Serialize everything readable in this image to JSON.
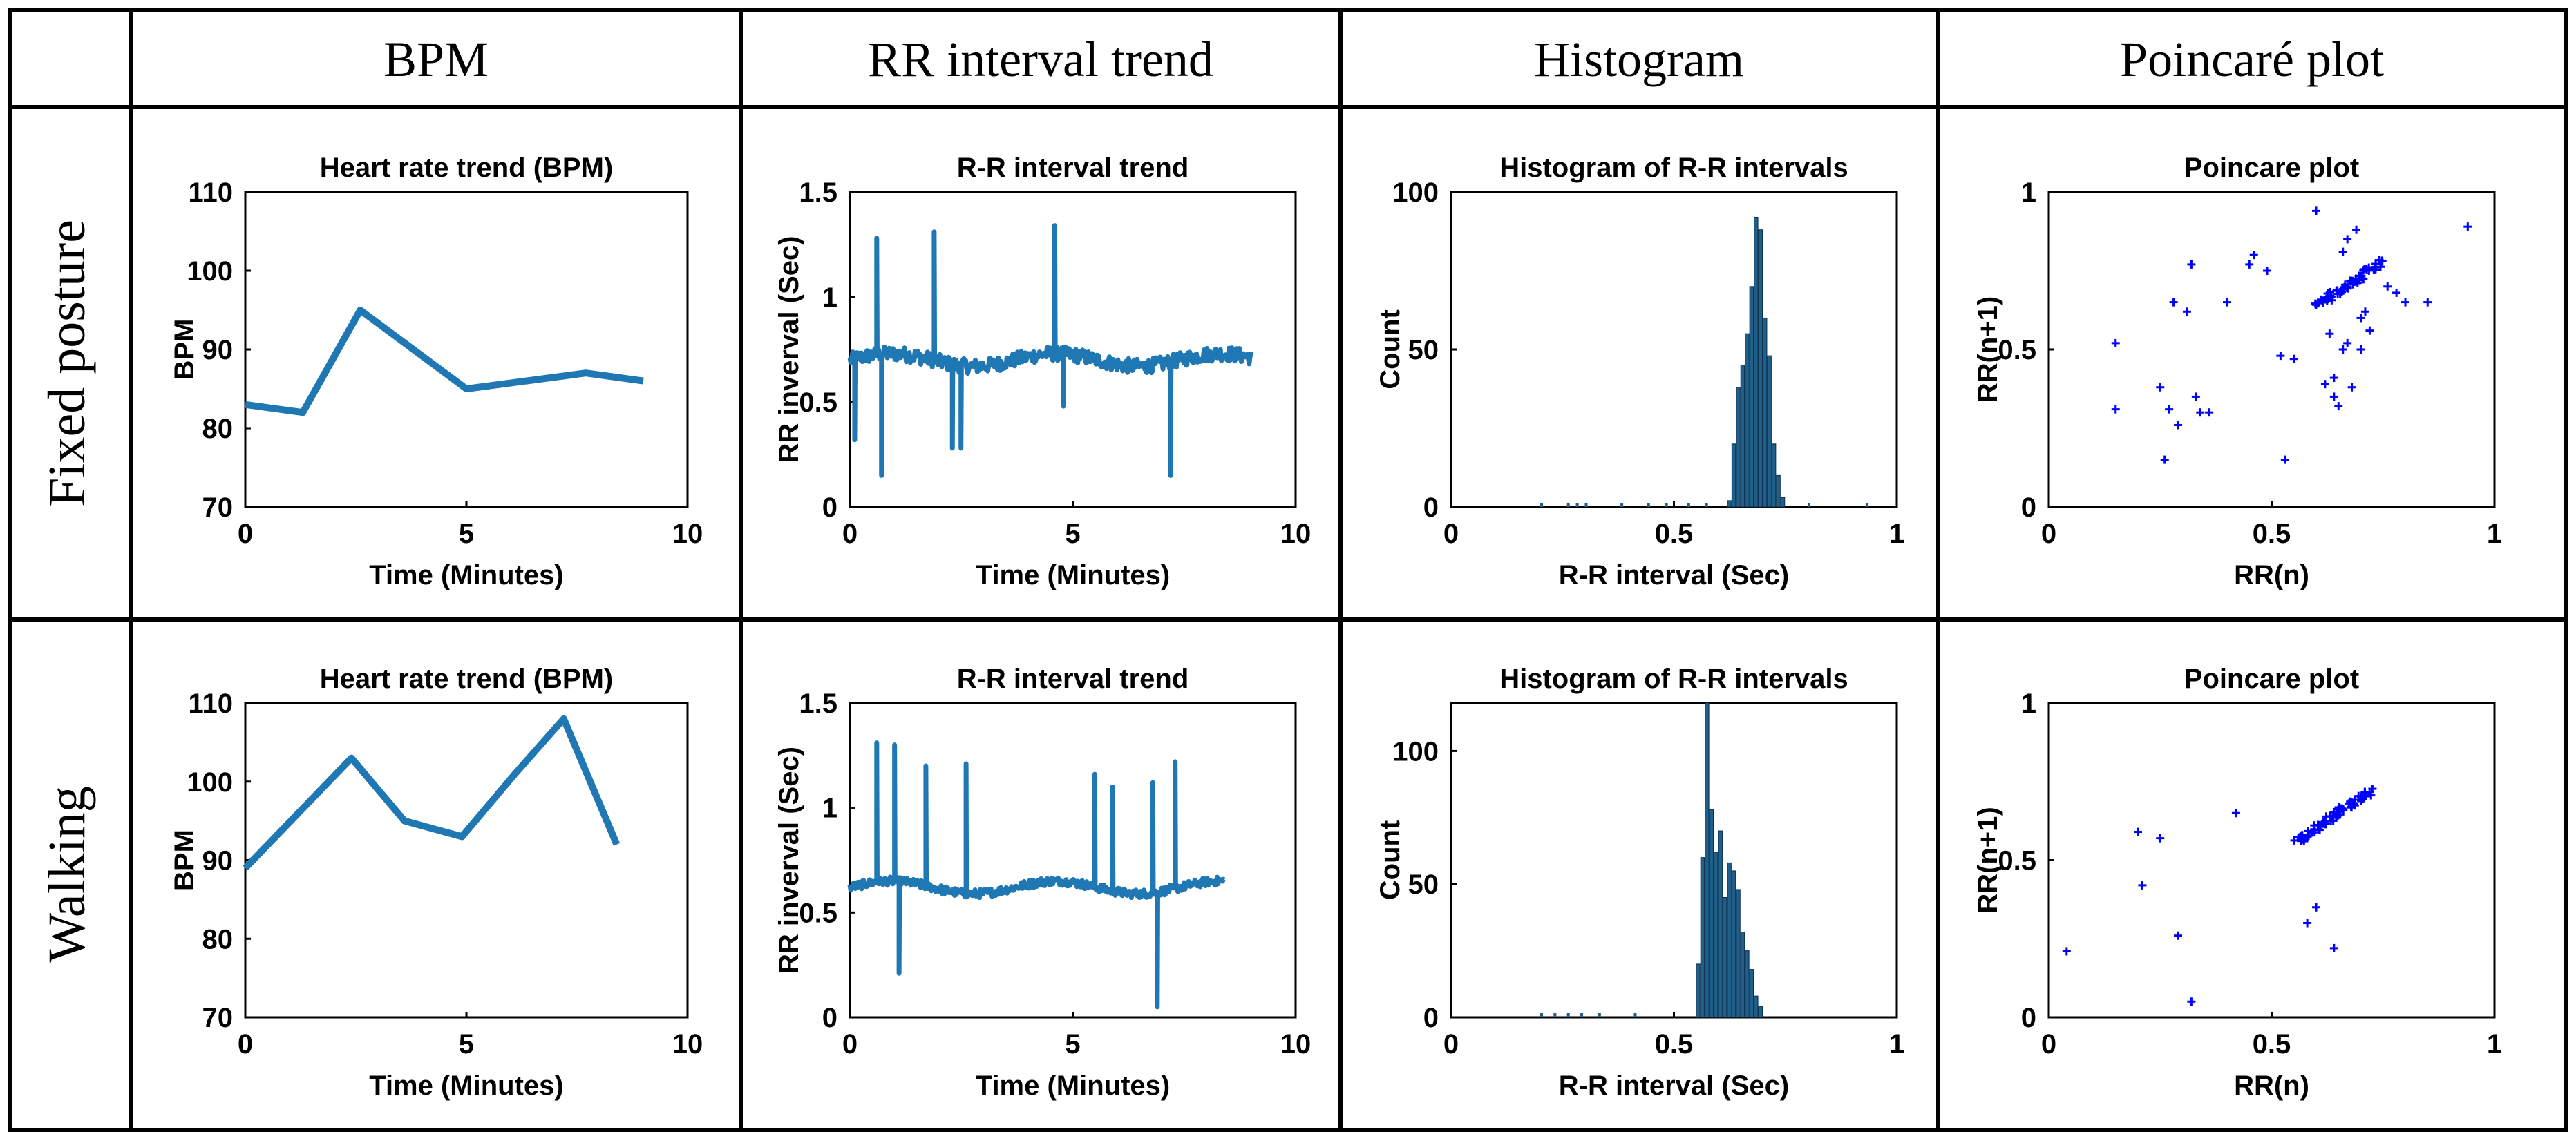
{
  "table": {
    "column_headers": [
      "BPM",
      "RR interval trend",
      "Histogram",
      "Poincaré plot"
    ],
    "row_headers": [
      "Fixed posture",
      "Walking"
    ]
  },
  "colors": {
    "line": "#1f77b4",
    "bar": "#1f5f8a",
    "marker": "#0000ff",
    "border": "#000000"
  },
  "chart_data": [
    {
      "id": "fixed-bpm",
      "type": "line",
      "title": "Heart rate trend (BPM)",
      "xlabel": "Time (Minutes)",
      "ylabel": "BPM",
      "xlim": [
        0,
        10
      ],
      "ylim": [
        70,
        110
      ],
      "xticks": [
        0,
        5,
        10
      ],
      "yticks": [
        70,
        80,
        90,
        100,
        110
      ],
      "x": [
        0,
        1.3,
        2.6,
        5.0,
        7.7,
        9.0
      ],
      "y": [
        83,
        82,
        95,
        85,
        87,
        86
      ]
    },
    {
      "id": "fixed-rr",
      "type": "line",
      "title": "R-R interval trend",
      "xlabel": "Time (Minutes)",
      "ylabel": "RR inverval (Sec)",
      "xlim": [
        0,
        10
      ],
      "ylim": [
        0,
        1.5
      ],
      "xticks": [
        0,
        5,
        10
      ],
      "yticks": [
        0,
        0.5,
        1,
        1.5
      ],
      "xmax": 9.0,
      "baseline": 0.7,
      "noise": 0.035,
      "spikes": [
        {
          "x": 0.1,
          "y": 0.32
        },
        {
          "x": 0.6,
          "y": 1.28
        },
        {
          "x": 0.7,
          "y": 0.15
        },
        {
          "x": 1.9,
          "y": 1.31
        },
        {
          "x": 2.3,
          "y": 0.28
        },
        {
          "x": 2.5,
          "y": 0.28
        },
        {
          "x": 4.6,
          "y": 1.34
        },
        {
          "x": 4.8,
          "y": 0.48
        },
        {
          "x": 7.2,
          "y": 0.15
        }
      ]
    },
    {
      "id": "fixed-hist",
      "type": "bar",
      "title": "Histogram of R-R intervals",
      "xlabel": "R-R interval (Sec)",
      "ylabel": "Count",
      "xlim": [
        0,
        1
      ],
      "ylim": [
        0,
        100
      ],
      "xticks": [
        0,
        0.5,
        1
      ],
      "yticks": [
        0,
        50,
        100
      ],
      "bin_start": 0.62,
      "bin_width": 0.01,
      "counts": [
        2,
        20,
        38,
        45,
        55,
        70,
        92,
        88,
        60,
        48,
        20,
        10,
        3
      ],
      "scatter_bins": [
        0.2,
        0.26,
        0.28,
        0.3,
        0.38,
        0.44,
        0.48,
        0.53,
        0.57,
        0.8,
        0.93
      ]
    },
    {
      "id": "fixed-poincare",
      "type": "scatter",
      "title": "Poincare plot",
      "xlabel": "RR(n)",
      "ylabel": "RR(n+1)",
      "xlim": [
        0,
        1
      ],
      "ylim": [
        0,
        1
      ],
      "xticks": [
        0,
        0.5,
        1
      ],
      "yticks": [
        0,
        0.5,
        1
      ],
      "cluster": {
        "x_from": 0.6,
        "x_to": 0.75,
        "y_from": 0.64,
        "y_to": 0.78,
        "count": 60
      },
      "points": [
        [
          0.15,
          0.52
        ],
        [
          0.15,
          0.31
        ],
        [
          0.25,
          0.38
        ],
        [
          0.26,
          0.15
        ],
        [
          0.27,
          0.31
        ],
        [
          0.28,
          0.65
        ],
        [
          0.29,
          0.26
        ],
        [
          0.31,
          0.62
        ],
        [
          0.32,
          0.77
        ],
        [
          0.33,
          0.35
        ],
        [
          0.34,
          0.3
        ],
        [
          0.36,
          0.3
        ],
        [
          0.4,
          0.65
        ],
        [
          0.45,
          0.77
        ],
        [
          0.46,
          0.8
        ],
        [
          0.49,
          0.75
        ],
        [
          0.52,
          0.48
        ],
        [
          0.53,
          0.15
        ],
        [
          0.55,
          0.47
        ],
        [
          0.6,
          0.94
        ],
        [
          0.62,
          0.39
        ],
        [
          0.63,
          0.55
        ],
        [
          0.64,
          0.35
        ],
        [
          0.65,
          0.32
        ],
        [
          0.66,
          0.5
        ],
        [
          0.66,
          0.81
        ],
        [
          0.67,
          0.52
        ],
        [
          0.68,
          0.38
        ],
        [
          0.69,
          0.88
        ],
        [
          0.7,
          0.6
        ],
        [
          0.71,
          0.62
        ],
        [
          0.72,
          0.56
        ],
        [
          0.76,
          0.7
        ],
        [
          0.78,
          0.68
        ],
        [
          0.8,
          0.65
        ],
        [
          0.85,
          0.65
        ],
        [
          0.94,
          0.89
        ],
        [
          0.64,
          0.41
        ],
        [
          0.67,
          0.85
        ],
        [
          0.7,
          0.5
        ]
      ]
    },
    {
      "id": "walking-bpm",
      "type": "line",
      "title": "Heart rate trend (BPM)",
      "xlabel": "Time (Minutes)",
      "ylabel": "BPM",
      "xlim": [
        0,
        10
      ],
      "ylim": [
        70,
        110
      ],
      "xticks": [
        0,
        5,
        10
      ],
      "yticks": [
        70,
        80,
        90,
        100,
        110
      ],
      "x": [
        0,
        2.4,
        3.6,
        4.9,
        6.1,
        7.2,
        8.4
      ],
      "y": [
        89,
        103,
        95,
        93,
        101,
        108,
        92
      ]
    },
    {
      "id": "walking-rr",
      "type": "line",
      "title": "R-R interval trend",
      "xlabel": "Time (Minutes)",
      "ylabel": "RR inverval (Sec)",
      "xlim": [
        0,
        10
      ],
      "ylim": [
        0,
        1.5
      ],
      "xticks": [
        0,
        5,
        10
      ],
      "yticks": [
        0,
        0.5,
        1,
        1.5
      ],
      "xmax": 8.4,
      "baseline": 0.62,
      "noise": 0.02,
      "spikes": [
        {
          "x": 0.6,
          "y": 1.31
        },
        {
          "x": 1.0,
          "y": 1.3
        },
        {
          "x": 1.1,
          "y": 0.21
        },
        {
          "x": 1.7,
          "y": 1.2
        },
        {
          "x": 2.6,
          "y": 1.21
        },
        {
          "x": 5.5,
          "y": 1.16
        },
        {
          "x": 5.9,
          "y": 1.1
        },
        {
          "x": 6.8,
          "y": 1.12
        },
        {
          "x": 6.9,
          "y": 0.05
        },
        {
          "x": 7.3,
          "y": 1.22
        }
      ]
    },
    {
      "id": "walking-hist",
      "type": "bar",
      "title": "Histogram of R-R intervals",
      "xlabel": "R-R interval (Sec)",
      "ylabel": "Count",
      "xlim": [
        0,
        1
      ],
      "ylim": [
        0,
        118
      ],
      "xticks": [
        0,
        0.5,
        1
      ],
      "yticks": [
        0,
        50,
        100
      ],
      "bin_start": 0.55,
      "bin_width": 0.01,
      "counts": [
        20,
        60,
        118,
        78,
        62,
        70,
        45,
        58,
        55,
        48,
        32,
        25,
        18,
        8,
        4
      ],
      "scatter_bins": [
        0.2,
        0.23,
        0.26,
        0.29,
        0.33,
        0.41
      ]
    },
    {
      "id": "walking-poincare",
      "type": "scatter",
      "title": "Poincare plot",
      "xlabel": "RR(n)",
      "ylabel": "RR(n+1)",
      "xlim": [
        0,
        1
      ],
      "ylim": [
        0,
        1
      ],
      "xticks": [
        0,
        0.5,
        1
      ],
      "yticks": [
        0,
        0.5,
        1
      ],
      "cluster": {
        "x_from": 0.56,
        "x_to": 0.72,
        "y_from": 0.56,
        "y_to": 0.72,
        "count": 70
      },
      "points": [
        [
          0.04,
          0.21
        ],
        [
          0.2,
          0.59
        ],
        [
          0.21,
          0.42
        ],
        [
          0.25,
          0.57
        ],
        [
          0.29,
          0.26
        ],
        [
          0.32,
          0.05
        ],
        [
          0.42,
          0.65
        ],
        [
          0.58,
          0.3
        ],
        [
          0.6,
          0.35
        ],
        [
          0.64,
          0.22
        ]
      ]
    }
  ]
}
